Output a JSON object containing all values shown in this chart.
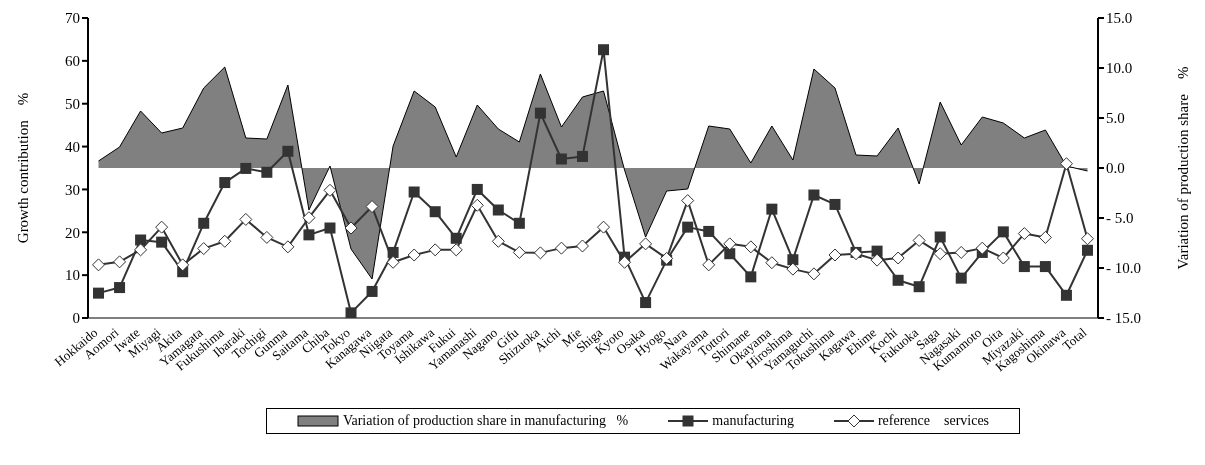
{
  "chart_data": {
    "type": "line",
    "categories": [
      "Hokkaido",
      "Aomori",
      "Iwate",
      "Miyagi",
      "Akita",
      "Yamagata",
      "Fukushima",
      "Ibaraki",
      "Tochigi",
      "Gunma",
      "Saitama",
      "Chiba",
      "Tokyo",
      "Kanagawa",
      "Niigata",
      "Toyama",
      "Ishikawa",
      "Fukui",
      "Yamanashi",
      "Nagano",
      "Gifu",
      "Shizuoka",
      "Aichi",
      "Mie",
      "Shiga",
      "Kyoto",
      "Osaka",
      "Hyogo",
      "Nara",
      "Wakayama",
      "Tottori",
      "Shimane",
      "Okayama",
      "Hiroshima",
      "Yamaguchi",
      "Tokushima",
      "Kagawa",
      "Ehime",
      "Kochi",
      "Fukuoka",
      "Saga",
      "Nagasaki",
      "Kumamoto",
      "Oita",
      "Miyazaki",
      "Kagoshima",
      "Okinawa",
      "Total"
    ],
    "series": [
      {
        "name": "Variation of production share in manufacturing   %",
        "type": "area",
        "axis": "y2",
        "color": "#808080",
        "values": [
          0.7,
          2.1,
          5.7,
          3.5,
          4.0,
          8.0,
          10.1,
          3.0,
          2.9,
          8.3,
          -4.2,
          0.2,
          -8.1,
          -11.1,
          2.2,
          7.7,
          6.1,
          1.1,
          6.3,
          3.9,
          2.6,
          9.4,
          4.1,
          7.1,
          7.7,
          -0.2,
          -6.9,
          -2.3,
          -2.1,
          4.2,
          3.9,
          0.5,
          4.2,
          0.8,
          9.9,
          8.0,
          1.3,
          1.2,
          4.0,
          -1.6,
          6.6,
          2.3,
          5.1,
          4.5,
          3.0,
          3.8,
          0.2,
          -0.3
        ]
      },
      {
        "name": "manufacturing",
        "marker": "square",
        "color": "#333333",
        "values": [
          5.8,
          7.1,
          18.2,
          17.7,
          10.8,
          22.1,
          31.6,
          34.9,
          34.0,
          38.9,
          19.4,
          21.0,
          1.2,
          6.2,
          15.3,
          29.4,
          24.8,
          18.6,
          30.0,
          25.2,
          22.1,
          47.8,
          37.1,
          37.7,
          62.6,
          14.2,
          3.6,
          13.5,
          21.2,
          20.2,
          15.0,
          9.6,
          25.4,
          13.6,
          28.7,
          26.5,
          15.3,
          15.6,
          8.8,
          7.3,
          18.9,
          9.3,
          15.3,
          20.1,
          12.0,
          12.0,
          5.3,
          15.8
        ]
      },
      {
        "name": "reference　services",
        "marker": "diamond",
        "color": "#333333",
        "values": [
          12.4,
          13.1,
          15.9,
          21.2,
          12.4,
          16.2,
          17.9,
          23.0,
          18.8,
          16.6,
          23.4,
          29.8,
          21.0,
          26.0,
          13.0,
          14.7,
          15.9,
          15.9,
          26.3,
          17.9,
          15.3,
          15.2,
          16.3,
          16.8,
          21.2,
          13.0,
          17.3,
          13.9,
          27.4,
          12.4,
          17.3,
          16.6,
          12.9,
          11.4,
          10.3,
          14.7,
          15.0,
          13.5,
          14.0,
          18.1,
          15.0,
          15.3,
          16.3,
          14.0,
          19.7,
          18.8,
          36.0,
          18.5
        ]
      }
    ],
    "ylabel": "Growth contribution　%",
    "y2label": "Variation of production share　%",
    "ylim": [
      0,
      70
    ],
    "yticks": [
      0,
      10,
      20,
      30,
      40,
      50,
      60,
      70
    ],
    "y2lim": [
      -15,
      15
    ],
    "y2ticks": [
      {
        "value": -15,
        "label": "- 15.0"
      },
      {
        "value": -10,
        "label": "- 10.0"
      },
      {
        "value": -5,
        "label": "- 5.0"
      },
      {
        "value": 0,
        "label": "0.0"
      },
      {
        "value": 5,
        "label": "5.0"
      },
      {
        "value": 10,
        "label": "10.0"
      },
      {
        "value": 15,
        "label": "15.0"
      }
    ],
    "grid": false,
    "legend": "bottom"
  }
}
